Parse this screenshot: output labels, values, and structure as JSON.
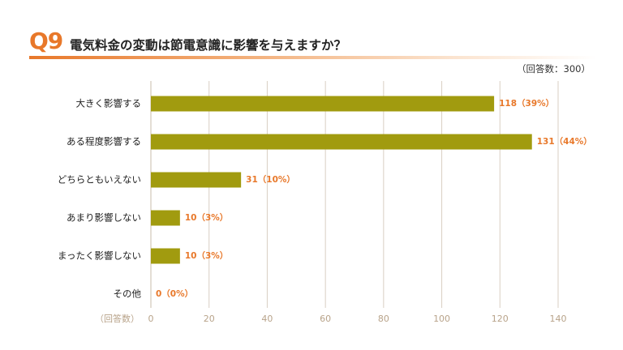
{
  "header": {
    "question_number": "Q9",
    "question_text": "電気料金の変動は節電意識に影響を与えますか？",
    "respondents": "（回答数：300）"
  },
  "colors": {
    "bar": "#a19b0f",
    "accent": "#e8782a",
    "grid": "#d9cfc3",
    "tick": "#b8a38a"
  },
  "chart_data": {
    "type": "bar",
    "orientation": "horizontal",
    "categories": [
      "大きく影響する",
      "ある程度影響する",
      "どちらともいえない",
      "あまり影響しない",
      "まったく影響しない",
      "その他"
    ],
    "values": [
      118,
      131,
      31,
      10,
      10,
      0
    ],
    "value_labels": [
      "118（39%）",
      "131（44%）",
      "31（10%）",
      "10（3%）",
      "10（3%）",
      "0（0%）"
    ],
    "xlabel": "（回答数）",
    "xlim": [
      0,
      140
    ],
    "xticks": [
      0,
      20,
      40,
      60,
      80,
      100,
      120,
      140
    ],
    "grid": true
  }
}
